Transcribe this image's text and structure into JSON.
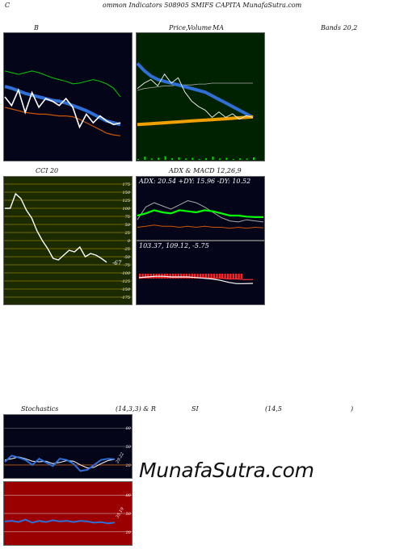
{
  "header": {
    "c": "C",
    "title": "ommon  Indicators 508905 SMIFS CAPITA MunafaSutra.com"
  },
  "labels": {
    "b": "B",
    "price": "Price,",
    "volume_overlap": "Volume",
    "ma": "MA",
    "bands": "Bands 20,2",
    "cci": "CCI 20",
    "adx": "ADX  & MACD 12,26,9",
    "stoch": "Stochastics",
    "stoch_params": "(14,3,3) & R",
    "si": "SI",
    "rsi_params": "(14,5",
    "paren": ")"
  },
  "cci": {
    "levels": [
      175,
      150,
      125,
      100,
      75,
      50,
      25,
      0,
      -25,
      -50,
      -75,
      -100,
      -125,
      -150,
      -175
    ],
    "value_label": "-67",
    "values": [
      100,
      100,
      145,
      130,
      95,
      70,
      30,
      0,
      -25,
      -55,
      -60,
      -45,
      -30,
      -35,
      -20,
      -50,
      -40,
      -45,
      -55,
      -67
    ]
  },
  "adx": {
    "readout": "ADX: 20.54  +DY: 15.96  -DY: 10.52",
    "adx_values": [
      22,
      24,
      27,
      25,
      24,
      27,
      26,
      25,
      27,
      26,
      24,
      22,
      22,
      21,
      20.5,
      20.54
    ],
    "plus_values": [
      18,
      30,
      34,
      31,
      28,
      32,
      36,
      34,
      30,
      25,
      20,
      17,
      16,
      18,
      17,
      15.96
    ],
    "minus_values": [
      11,
      12,
      13,
      12,
      12,
      11,
      12,
      11,
      12,
      11,
      11,
      10,
      11,
      10,
      11,
      10.52
    ]
  },
  "macd": {
    "readout": "103.37,  109.12,  -5.75",
    "macd_values": [
      112,
      113,
      114,
      114,
      113,
      113,
      113,
      112,
      111,
      110,
      108,
      105,
      103,
      103,
      103.37
    ],
    "signal_values": [
      111,
      112,
      112,
      112,
      112,
      112,
      112,
      112,
      112,
      111,
      111,
      110,
      110,
      109,
      109.12
    ]
  },
  "stochastics": {
    "levels": [
      80,
      50,
      20
    ],
    "value_label": "29.22",
    "k_values": [
      25,
      35,
      32,
      28,
      20,
      30,
      24,
      18,
      30,
      28,
      22,
      10,
      12,
      20,
      28,
      30,
      29.22
    ],
    "d_values": [
      28,
      30,
      33,
      30,
      26,
      25,
      26,
      22,
      24,
      27,
      26,
      20,
      15,
      16,
      22,
      27,
      29
    ]
  },
  "rsi": {
    "levels": [
      80,
      50,
      20
    ],
    "value_label": "35.19",
    "values": [
      37,
      38,
      36,
      40,
      35,
      38,
      36,
      39,
      37,
      38,
      36,
      38,
      37,
      35,
      36,
      34,
      35.19
    ]
  },
  "bands": {
    "close": [
      130,
      120,
      138,
      112,
      135,
      118,
      128,
      125,
      120,
      128,
      118,
      95,
      110,
      100,
      108,
      102,
      98,
      100
    ],
    "upper": [
      160,
      158,
      156,
      158,
      160,
      158,
      155,
      152,
      150,
      148,
      145,
      146,
      148,
      150,
      148,
      145,
      140,
      130
    ],
    "mid": [
      142,
      140,
      137,
      134,
      132,
      130,
      128,
      126,
      125,
      123,
      120,
      117,
      114,
      110,
      106,
      102,
      100,
      98
    ],
    "lower": [
      118,
      116,
      114,
      112,
      111,
      110,
      110,
      109,
      108,
      108,
      107,
      104,
      100,
      96,
      92,
      88,
      86,
      85
    ]
  },
  "price_ma": {
    "close": [
      112,
      118,
      122,
      115,
      128,
      118,
      124,
      108,
      98,
      92,
      88,
      80,
      86,
      80,
      84,
      78,
      82,
      80
    ],
    "ma_fast": [
      140,
      132,
      126,
      122,
      120,
      118,
      116,
      114,
      112,
      110,
      108,
      104,
      100,
      96,
      92,
      88,
      84,
      80
    ],
    "ma_slow": [
      72,
      72.5,
      73,
      73.5,
      74,
      74.5,
      75,
      75.5,
      76,
      76.5,
      77,
      77.5,
      78,
      78.5,
      79,
      79.5,
      80,
      80.5
    ],
    "ma_mid": [
      110,
      112,
      113,
      114,
      115,
      115,
      116,
      116,
      116,
      117,
      117,
      118,
      118,
      118,
      118,
      118,
      118,
      118
    ],
    "volume": [
      2,
      8,
      3,
      5,
      9,
      4,
      6,
      3,
      5,
      2,
      4,
      8,
      3,
      5,
      2,
      4,
      3,
      6
    ]
  },
  "watermark": "MunafaSutra.com"
}
